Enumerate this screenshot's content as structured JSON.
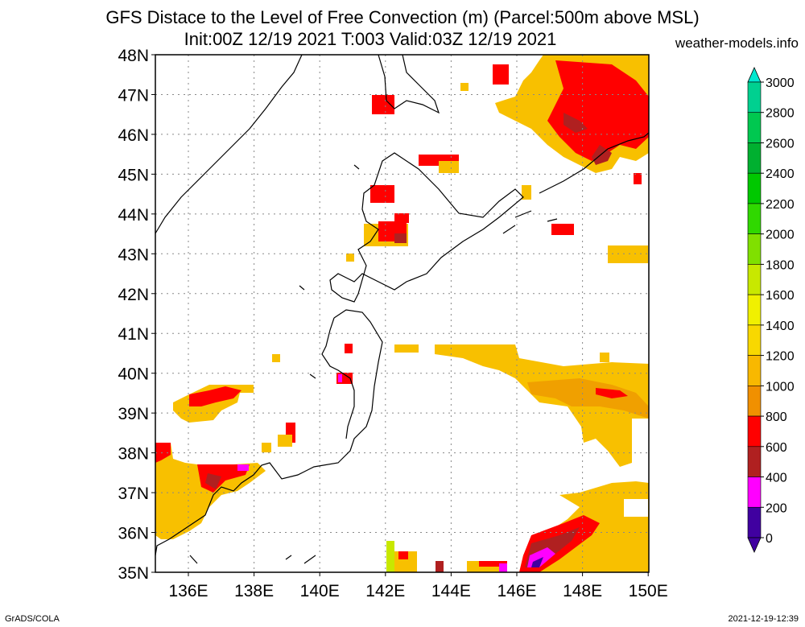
{
  "title_line1": "GFS Distace to the Level of Free Convection (m) (Parcel:500m above MSL)",
  "title_line2": "Init:00Z 12/19 2021 T:003 Valid:03Z 12/19 2021",
  "site": "weather-models.info",
  "footer_left": "GrADS/COLA",
  "footer_right": "2021-12-19-12:39",
  "lat_labels": [
    "48N",
    "47N",
    "46N",
    "45N",
    "44N",
    "43N",
    "42N",
    "41N",
    "40N",
    "39N",
    "38N",
    "37N",
    "36N",
    "35N"
  ],
  "lon_labels": [
    "136E",
    "138E",
    "140E",
    "142E",
    "144E",
    "146E",
    "148E",
    "150E"
  ],
  "colorbar": {
    "labels": [
      "3000",
      "2800",
      "2600",
      "2400",
      "2200",
      "2000",
      "1800",
      "1600",
      "1400",
      "1200",
      "1000",
      "800",
      "600",
      "400",
      "200",
      "0"
    ],
    "colors": [
      "#00e8d0",
      "#00d090",
      "#00c850",
      "#00b030",
      "#00c800",
      "#30d800",
      "#80e000",
      "#c8e800",
      "#f0f000",
      "#f8d800",
      "#f8b800",
      "#f09000",
      "#ff0000",
      "#b02020",
      "#ff00ff",
      "#4000a0"
    ]
  }
}
